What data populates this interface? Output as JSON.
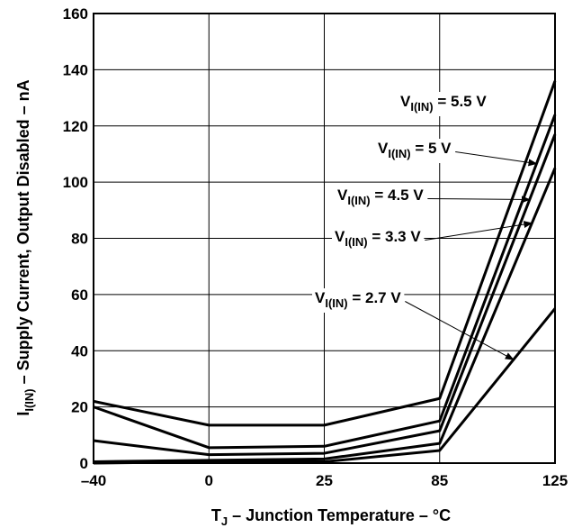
{
  "chart_data": {
    "type": "line",
    "xlabel": {
      "main": "T",
      "sub": "J",
      "rest": " – Junction Temperature – °C"
    },
    "ylabel": {
      "main": "I",
      "sub": "I(IN)",
      "rest": " – Supply Current, Output Disabled – nA"
    },
    "x": [
      -40,
      0,
      25,
      85,
      125
    ],
    "x_tick_labels": [
      "–40",
      "0",
      "25",
      "85",
      "125"
    ],
    "xlim": [
      -40,
      125
    ],
    "ylim": [
      0,
      160
    ],
    "y_ticks": [
      0,
      20,
      40,
      60,
      80,
      100,
      120,
      140,
      160
    ],
    "grid": true,
    "series": [
      {
        "name": "V_I(IN) = 5.5 V",
        "label": {
          "main": "V",
          "sub": "I(IN)",
          "rest": " = 5.5 V"
        },
        "values": [
          22,
          13.5,
          13.5,
          23,
          136
        ]
      },
      {
        "name": "V_I(IN) = 5 V",
        "label": {
          "main": "V",
          "sub": "I(IN)",
          "rest": " = 5 V"
        },
        "values": [
          20,
          5.5,
          6,
          15,
          124
        ]
      },
      {
        "name": "V_I(IN) = 4.5 V",
        "label": {
          "main": "V",
          "sub": "I(IN)",
          "rest": " = 4.5 V"
        },
        "values": [
          8,
          3,
          3.5,
          11.5,
          117
        ]
      },
      {
        "name": "V_I(IN) = 3.3 V",
        "label": {
          "main": "V",
          "sub": "I(IN)",
          "rest": " = 3.3 V"
        },
        "values": [
          0.5,
          1,
          1.5,
          7,
          105
        ]
      },
      {
        "name": "V_I(IN) = 2.7 V",
        "label": {
          "main": "V",
          "sub": "I(IN)",
          "rest": " = 2.7  V"
        },
        "values": [
          0,
          0.5,
          0.5,
          4.5,
          55
        ]
      }
    ]
  }
}
